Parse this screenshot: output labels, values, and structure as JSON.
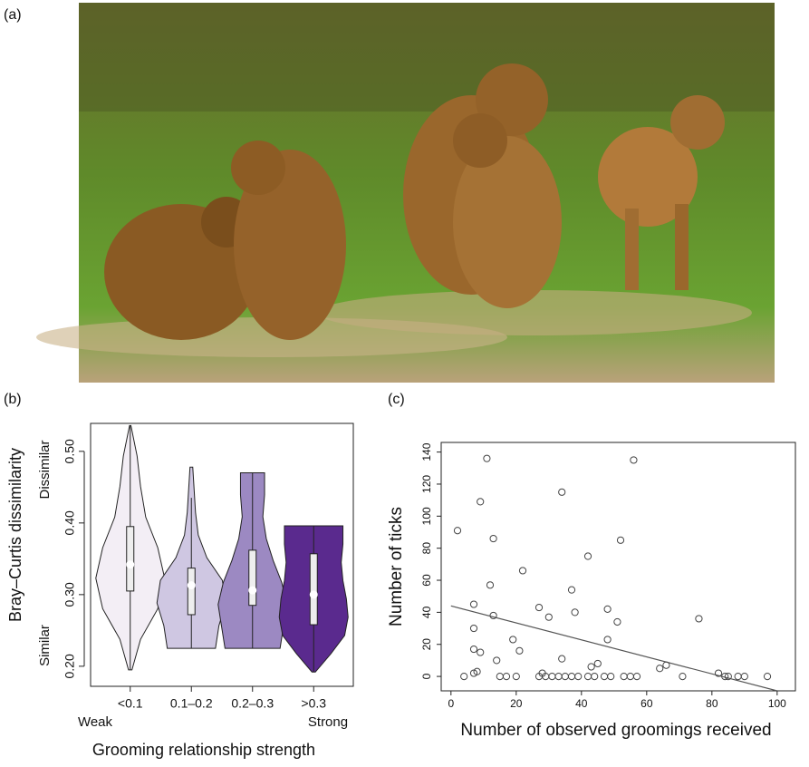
{
  "photo": {
    "label": "(a)"
  },
  "chart_data": [
    {
      "type": "violin",
      "panel": "(b)",
      "ylabel": "Bray–Curtis dissimilarity",
      "xlabel": "Grooming relationship strength",
      "annotations": {
        "top": "Dissimilar",
        "bottom": "Similar",
        "left": "Weak",
        "right": "Strong"
      },
      "categories": [
        "<0.1",
        "0.1–0.2",
        "0.2–0.3",
        ">0.3"
      ],
      "violins": [
        {
          "color": "#f3eef5",
          "min": 0.195,
          "max": 0.536,
          "whisker_low": 0.195,
          "whisker_high": 0.536,
          "q1": 0.305,
          "q3": 0.395,
          "median": 0.342,
          "density": [
            0.05,
            0.3,
            0.8,
            1,
            0.8,
            0.45,
            0.3,
            0.2,
            0.02
          ]
        },
        {
          "color": "#cfc7e2",
          "min": 0.225,
          "max": 0.478,
          "whisker_low": 0.225,
          "whisker_high": 0.435,
          "q1": 0.272,
          "q3": 0.337,
          "median": 0.313,
          "density": [
            0.7,
            0.8,
            1,
            0.9,
            0.45,
            0.2,
            0.12,
            0.08,
            0.04
          ]
        },
        {
          "color": "#9c89c2",
          "min": 0.225,
          "max": 0.47,
          "whisker_low": 0.225,
          "whisker_high": 0.47,
          "q1": 0.285,
          "q3": 0.362,
          "median": 0.306,
          "density": [
            0.8,
            0.9,
            1,
            0.85,
            0.6,
            0.4,
            0.3,
            0.35,
            0.35
          ]
        },
        {
          "color": "#5a2a8e",
          "min": 0.192,
          "max": 0.396,
          "whisker_low": 0.192,
          "whisker_high": 0.396,
          "q1": 0.258,
          "q3": 0.357,
          "median": 0.3,
          "density": [
            0.05,
            0.5,
            0.9,
            1,
            0.95,
            0.85,
            0.8,
            0.85,
            0.85
          ]
        }
      ],
      "ylim": [
        0.172,
        0.539
      ],
      "yticks": [
        {
          "value": 0.2,
          "label": "0.20"
        },
        {
          "value": 0.3,
          "label": "0.30"
        },
        {
          "value": 0.4,
          "label": "0.40"
        },
        {
          "value": 0.5,
          "label": "0.50"
        }
      ]
    },
    {
      "type": "scatter",
      "panel": "(c)",
      "xlabel": "Number of observed groomings received",
      "ylabel": "Number of ticks",
      "x": [
        2,
        4,
        7,
        7,
        7,
        7,
        8,
        9,
        9,
        11,
        12,
        13,
        13,
        14,
        15,
        17,
        19,
        20,
        21,
        22,
        27,
        27,
        28,
        29,
        30,
        31,
        33,
        34,
        34,
        35,
        37,
        37,
        38,
        39,
        42,
        42,
        43,
        44,
        45,
        47,
        48,
        48,
        49,
        51,
        52,
        53,
        55,
        56,
        57,
        64,
        66,
        71,
        76,
        82,
        84,
        85,
        88,
        90,
        97
      ],
      "values": [
        91,
        0,
        2,
        45,
        30,
        17,
        3,
        15,
        109,
        136,
        57,
        86,
        38,
        10,
        0,
        0,
        23,
        0,
        16,
        66,
        0,
        43,
        2,
        0,
        37,
        0,
        0,
        115,
        11,
        0,
        0,
        54,
        40,
        0,
        0,
        75,
        6,
        0,
        8,
        0,
        42,
        23,
        0,
        34,
        85,
        0,
        0,
        135,
        0,
        5,
        7,
        0,
        36,
        2,
        0,
        0,
        0,
        0,
        0
      ],
      "color": "#444444",
      "trend": {
        "x": [
          0,
          100
        ],
        "values": [
          44,
          -9
        ],
        "color": "#555555"
      },
      "xlim": [
        -3,
        105.6
      ],
      "ylim": [
        -9,
        146
      ],
      "xticks": [
        0,
        20,
        40,
        60,
        80,
        100
      ],
      "yticks": [
        0,
        20,
        40,
        60,
        80,
        100,
        120,
        140
      ]
    }
  ]
}
